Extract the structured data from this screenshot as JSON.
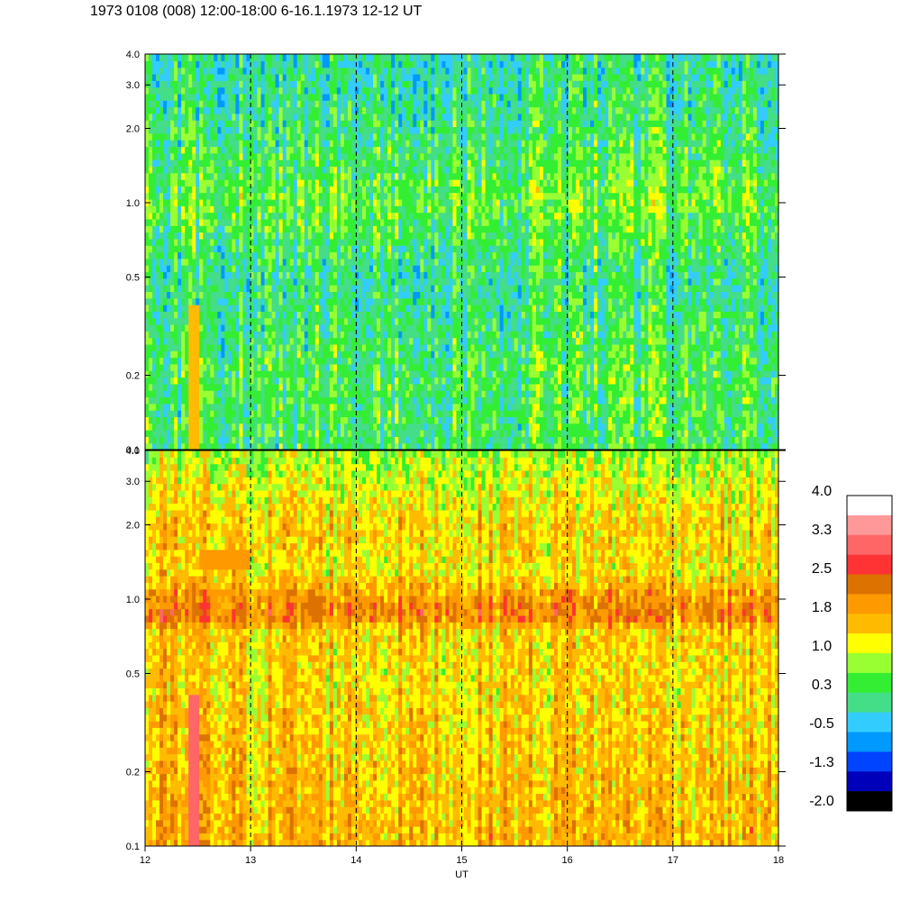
{
  "title": "1973 0108 (008) 12:00-18:00 6-16.1.1973  12-12 UT",
  "chart_data": {
    "type": "heatmap",
    "title": "1973 0108 (008) 12:00-18:00 6-16.1.1973  12-12 UT",
    "xlabel": "UT",
    "xlim": [
      12,
      18
    ],
    "x_ticks": [
      12,
      13,
      14,
      15,
      16,
      17,
      18
    ],
    "x_tick_labels": [
      "12",
      "13",
      "14",
      "15",
      "16",
      "17",
      "18"
    ],
    "dashed_vlines": [
      13,
      14,
      15,
      16,
      17
    ],
    "y_scale": "log",
    "panels": [
      {
        "name": "upper",
        "ylim": [
          0.1,
          4.0
        ],
        "y_ticks": [
          0.1,
          0.2,
          0.5,
          1.0,
          2.0,
          3.0,
          4.0
        ],
        "y_tick_labels": [
          "0.1",
          "0.2",
          "0.5",
          "1.0",
          "2.0",
          "3.0",
          "4.0"
        ],
        "dominant_level": 0.3,
        "level_profile": [
          {
            "y": 0.1,
            "level": 0.3
          },
          {
            "y": 0.2,
            "level": 0.4
          },
          {
            "y": 0.5,
            "level": 0.1
          },
          {
            "y": 1.0,
            "level": 0.6
          },
          {
            "y": 2.0,
            "level": 0.2
          },
          {
            "y": 4.0,
            "level": 0.0
          }
        ],
        "features": [
          {
            "x": [
              12.42,
              12.52
            ],
            "y": [
              0.1,
              0.38
            ],
            "level": 1.6
          }
        ]
      },
      {
        "name": "lower",
        "ylim": [
          0.1,
          4.0
        ],
        "y_ticks": [
          0.1,
          0.2,
          0.5,
          1.0,
          2.0,
          3.0,
          4.0
        ],
        "y_tick_labels": [
          "0.1",
          "0.2",
          "0.5",
          "1.0",
          "2.0",
          "3.0",
          "4.0"
        ],
        "dominant_level": 1.6,
        "level_profile": [
          {
            "y": 0.1,
            "level": 1.7
          },
          {
            "y": 0.5,
            "level": 1.4
          },
          {
            "y": 0.75,
            "level": 1.5
          },
          {
            "y": 0.85,
            "level": 2.2
          },
          {
            "y": 1.05,
            "level": 1.9
          },
          {
            "y": 1.3,
            "level": 1.3
          },
          {
            "y": 2.0,
            "level": 1.5
          },
          {
            "y": 4.0,
            "level": 0.8
          }
        ],
        "features": [
          {
            "x": [
              12.42,
              12.52
            ],
            "y": [
              0.1,
              0.42
            ],
            "level": 3.0
          },
          {
            "x": [
              12.5,
              13.0
            ],
            "y": [
              1.35,
              1.55
            ],
            "level": 1.9
          }
        ]
      }
    ],
    "colorbar": {
      "levels": [
        -2.0,
        -1.3,
        -0.5,
        0.3,
        1.0,
        1.8,
        2.5,
        3.3,
        4.0
      ],
      "labels": [
        "4.0",
        "3.3",
        "2.5",
        "1.8",
        "1.0",
        "0.3",
        "-0.5",
        "-1.3",
        "-2.0"
      ],
      "colors": [
        "#ffffff",
        "#ff9999",
        "#ff6666",
        "#ff3333",
        "#dd7200",
        "#ff9900",
        "#ffbb00",
        "#ffff00",
        "#99ff33",
        "#33ee33",
        "#44dd88",
        "#33ccff",
        "#0099ff",
        "#0044ff",
        "#0000bb",
        "#000000"
      ]
    }
  }
}
